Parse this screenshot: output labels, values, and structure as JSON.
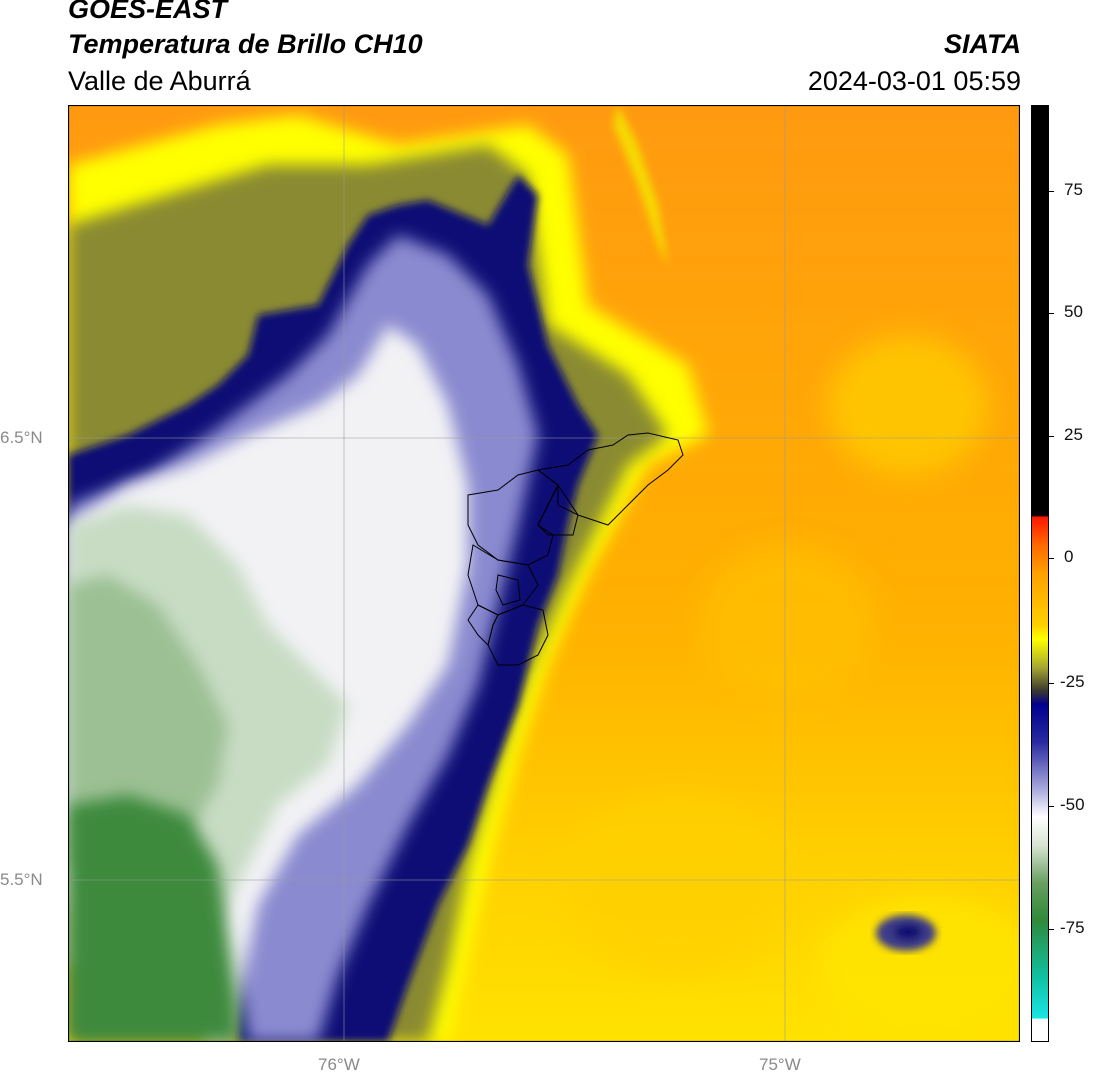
{
  "header": {
    "satellite": "GOES-EAST",
    "product": "Temperatura de Brillo CH10",
    "region": "Valle de Aburrá",
    "source": "SIATA",
    "datetime": "2024-03-01 05:59"
  },
  "map": {
    "lat_ticks": [
      "6.5°N",
      "5.5°N"
    ],
    "lon_ticks": [
      "76°W",
      "75°W"
    ]
  },
  "colorbar": {
    "ticks": [
      "75",
      "50",
      "25",
      "0",
      "-25",
      "-50",
      "-75"
    ],
    "colors": {
      "black": "#000000",
      "red": "#ff2000",
      "orange": "#ff9a00",
      "yellow": "#ffff00",
      "olive": "#5a6a3a",
      "navy": "#0a0a6a",
      "white": "#f5f5f5",
      "green": "#2f8a3a",
      "cyan": "#19e6cf"
    }
  }
}
